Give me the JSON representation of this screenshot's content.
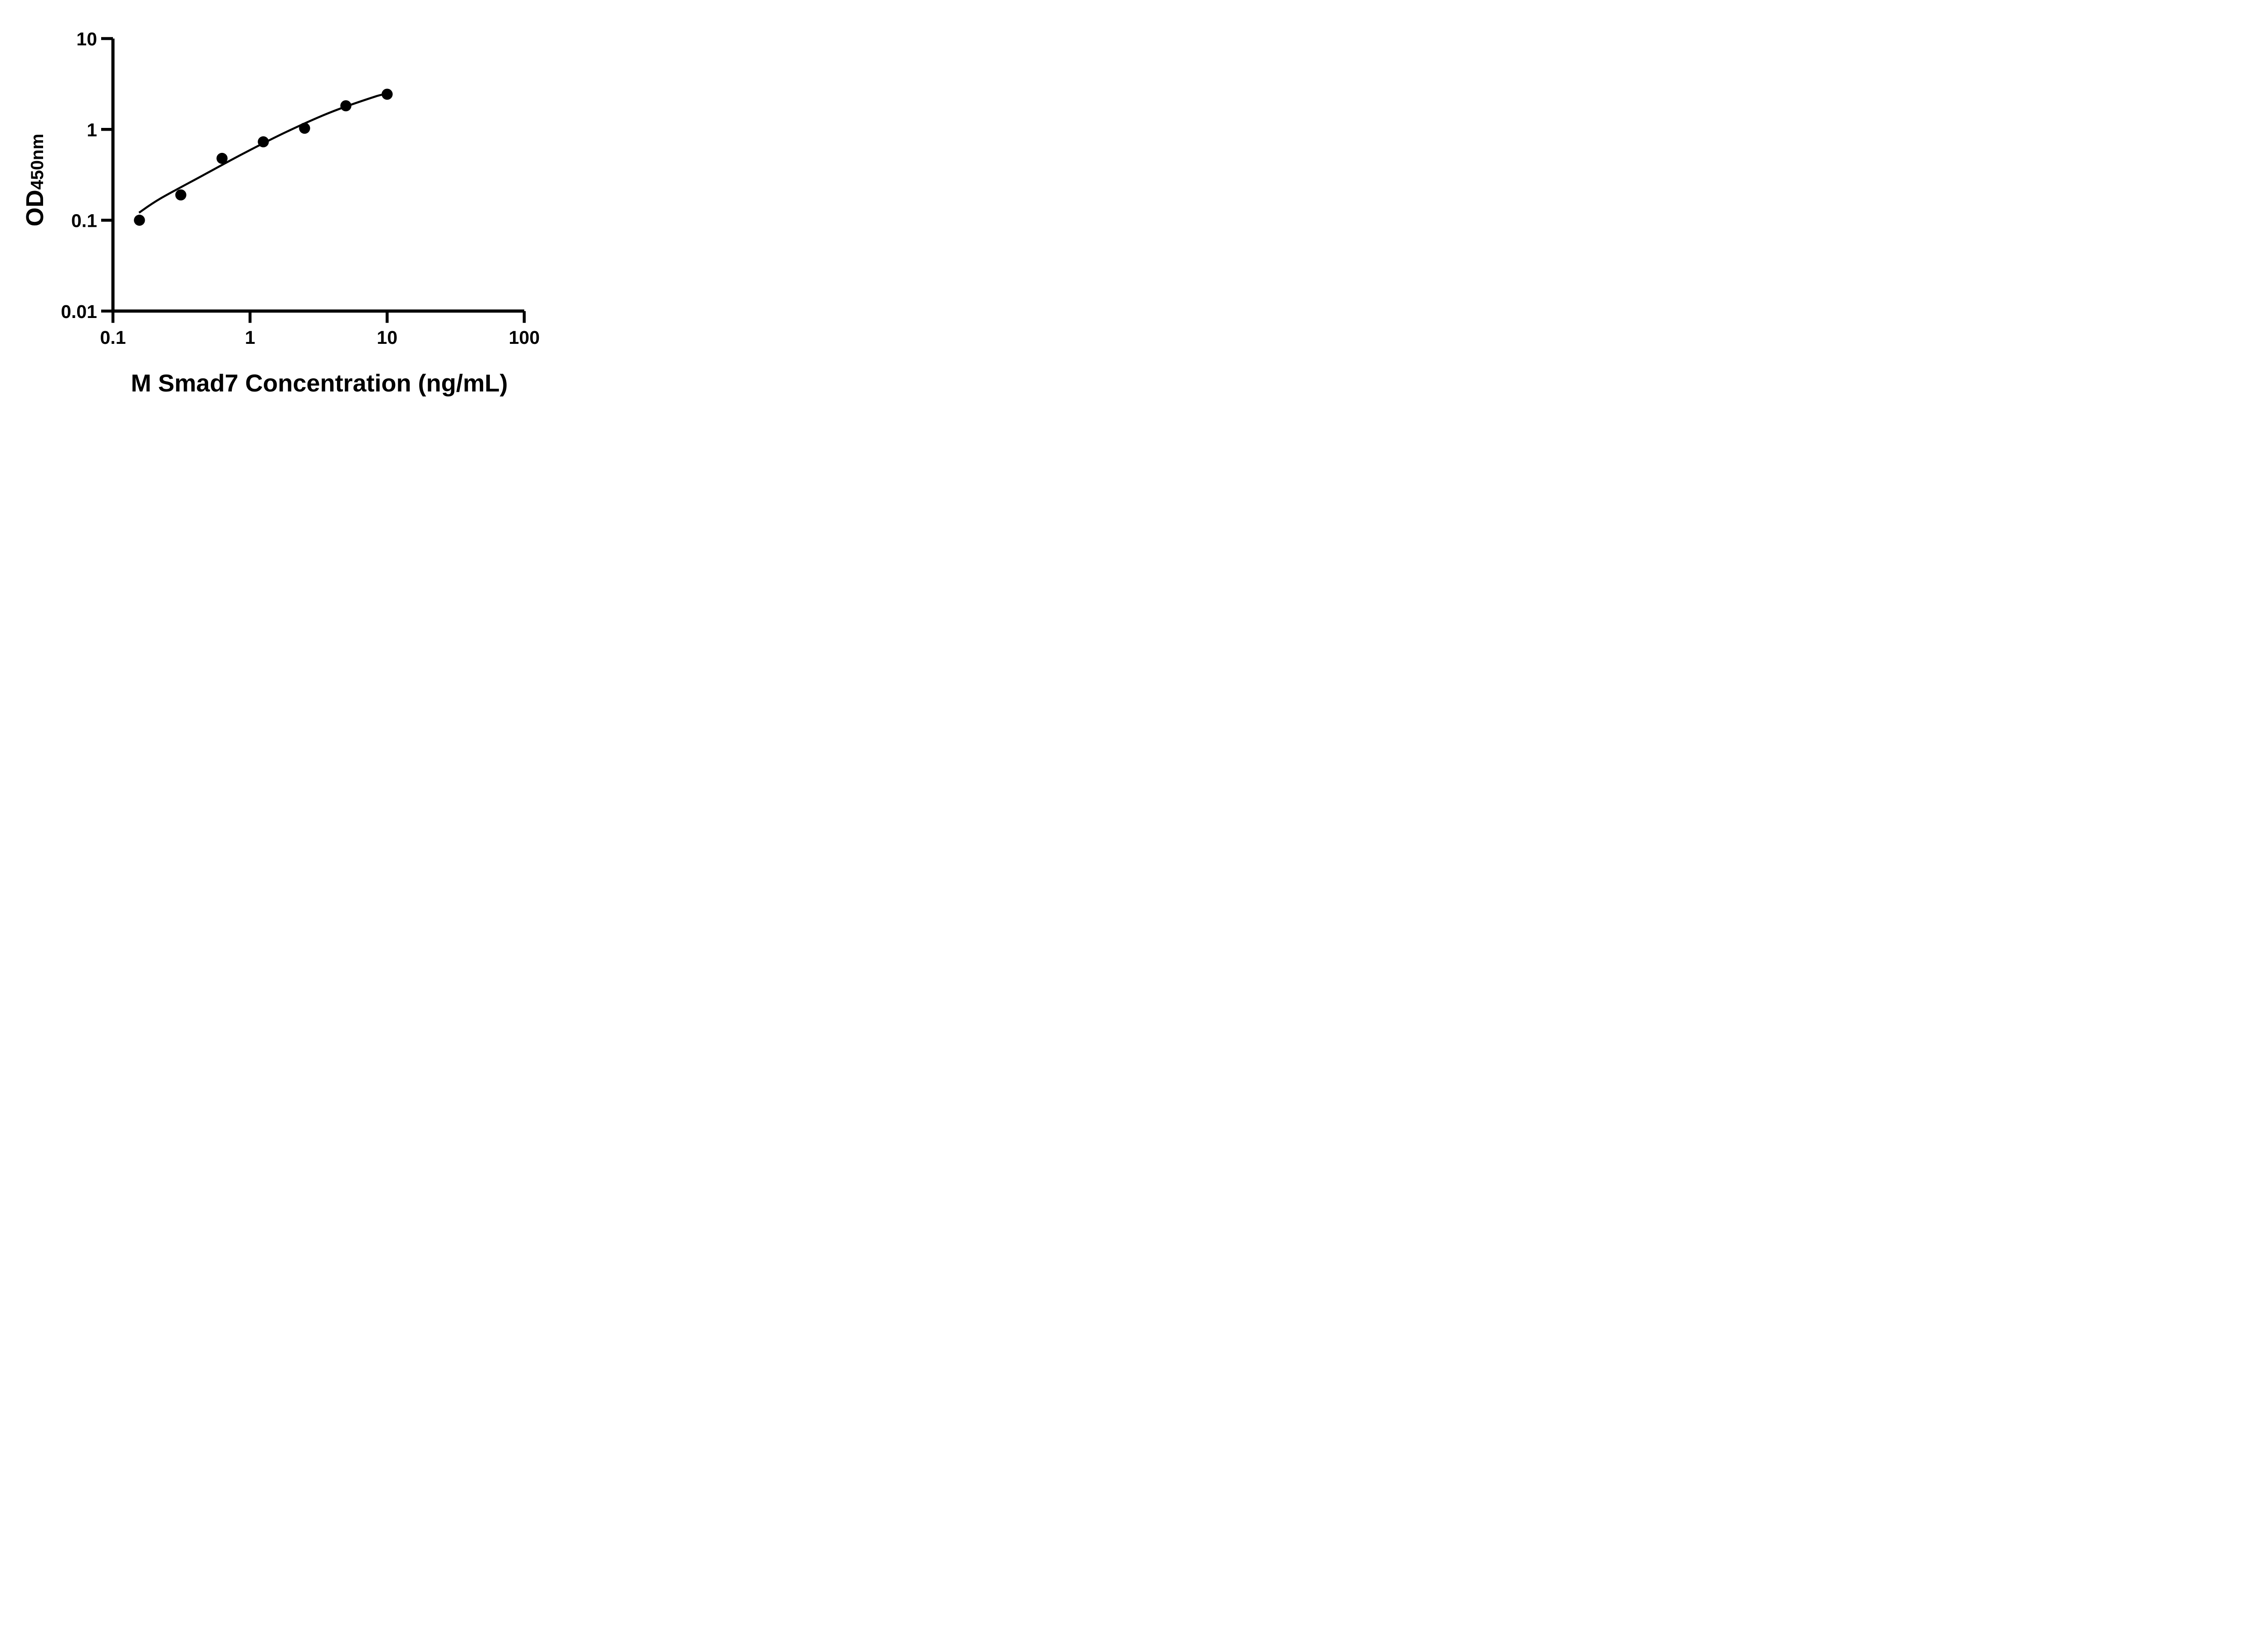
{
  "figure": {
    "background_color": "#ffffff",
    "ink_color": "#000000"
  },
  "chart_data": {
    "type": "scatter",
    "title": "",
    "xlabel": "M Smad7 Concentration (ng/mL)",
    "ylabel_main": "OD",
    "ylabel_sub": "450nm",
    "x_scale": "log10",
    "y_scale": "log10",
    "xlim": [
      0.1,
      100
    ],
    "ylim": [
      0.01,
      10
    ],
    "x_ticks": [
      0.1,
      1,
      10,
      100
    ],
    "x_tick_labels": [
      "0.1",
      "1",
      "10",
      "100"
    ],
    "y_ticks": [
      10,
      1,
      0.1,
      0.01
    ],
    "y_tick_labels": [
      "10",
      "1",
      "0.1",
      "0.01"
    ],
    "grid": false,
    "legend": null,
    "series": [
      {
        "name": "standard-points",
        "kind": "scatter",
        "marker": "filled-circle",
        "color": "#000000",
        "x": [
          0.156,
          0.3125,
          0.625,
          1.25,
          2.5,
          5,
          10
        ],
        "y": [
          0.1,
          0.19,
          0.48,
          0.73,
          1.03,
          1.82,
          2.44
        ]
      },
      {
        "name": "fit-curve",
        "kind": "line",
        "color": "#000000",
        "x": [
          0.155,
          0.22,
          0.45,
          0.92,
          1.9,
          3.9,
          8.2,
          9.9
        ],
        "y": [
          0.121,
          0.172,
          0.31,
          0.555,
          0.96,
          1.55,
          2.3,
          2.44
        ]
      }
    ]
  }
}
